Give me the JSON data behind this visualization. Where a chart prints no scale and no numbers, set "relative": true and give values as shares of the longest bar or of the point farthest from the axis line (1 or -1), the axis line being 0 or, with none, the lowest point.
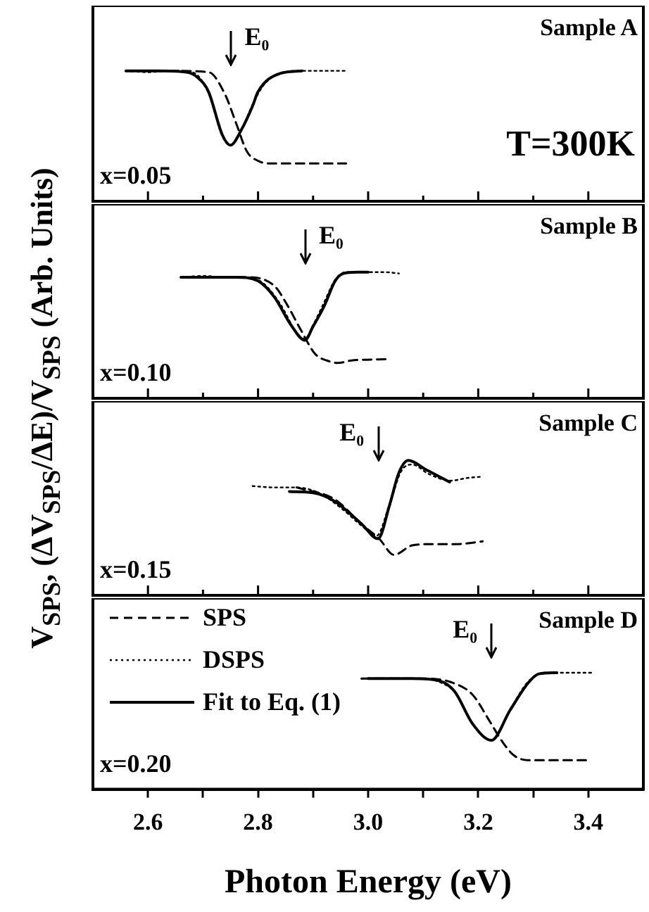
{
  "chart_data": [
    {
      "type": "line",
      "relative": true,
      "marker": "none",
      "ylabel": "V$_{SPS}$, (ΔV$_{SPS}$/ΔE)/V$_{SPS}$ (Arb. Units)",
      "xlim": [
        2.5,
        3.5
      ],
      "annotations": [
        "Sample A",
        "x=0.05",
        "T=300K",
        "E₀"
      ],
      "series": [
        {
          "color": "#000000",
          "line_style": "dashed",
          "x": [
            2.56,
            2.64,
            2.71,
            2.74,
            2.76,
            2.78,
            2.8,
            2.82,
            2.9,
            2.96
          ],
          "values": [
            1,
            1,
            0.99,
            0.82,
            0.6,
            0.38,
            0.31,
            0.29,
            0.29,
            0.29
          ]
        },
        {
          "color": "#000000",
          "line_style": "dotted",
          "x": [
            2.56,
            2.6,
            2.64,
            2.68,
            2.71,
            2.735,
            2.75,
            2.77,
            2.79,
            2.81,
            2.84,
            2.88,
            2.92,
            2.96
          ],
          "values": [
            1,
            0.99,
            1,
            0.99,
            0.83,
            0.5,
            0.43,
            0.55,
            0.74,
            0.89,
            0.98,
            1,
            1,
            1
          ]
        },
        {
          "color": "#000000",
          "line_style": "solid",
          "x": [
            2.56,
            2.62,
            2.67,
            2.69,
            2.71,
            2.735,
            2.75,
            2.77,
            2.79,
            2.8,
            2.84,
            2.88
          ],
          "values": [
            1,
            1,
            0.99,
            0.95,
            0.84,
            0.51,
            0.43,
            0.55,
            0.73,
            0.84,
            0.98,
            1
          ]
        }
      ]
    },
    {
      "type": "line",
      "relative": true,
      "marker": "none",
      "xlim": [
        2.5,
        3.5
      ],
      "annotations": [
        "Sample B",
        "x=0.10",
        "E₀"
      ],
      "series": [
        {
          "color": "#000000",
          "line_style": "dashed",
          "x": [
            2.66,
            2.78,
            2.83,
            2.853,
            2.878,
            2.904,
            2.925,
            2.945,
            2.97,
            3.04
          ],
          "values": [
            0.96,
            0.96,
            0.89,
            0.74,
            0.54,
            0.35,
            0.3,
            0.28,
            0.3,
            0.31
          ]
        },
        {
          "color": "#000000",
          "line_style": "dotted",
          "x": [
            2.66,
            2.7,
            2.74,
            2.78,
            2.81,
            2.84,
            2.87,
            2.885,
            2.9,
            2.92,
            2.94,
            2.96,
            3.0,
            3.03,
            3.056
          ],
          "values": [
            0.96,
            0.97,
            0.96,
            0.96,
            0.91,
            0.75,
            0.52,
            0.47,
            0.58,
            0.76,
            0.94,
            1,
            1,
            1,
            0.99
          ]
        },
        {
          "color": "#000000",
          "line_style": "solid",
          "x": [
            2.66,
            2.72,
            2.76,
            2.8,
            2.83,
            2.86,
            2.885,
            2.9,
            2.92,
            2.94,
            2.955,
            2.98,
            3.0
          ],
          "values": [
            0.96,
            0.96,
            0.96,
            0.93,
            0.8,
            0.58,
            0.46,
            0.57,
            0.73,
            0.93,
            0.99,
            1,
            1
          ]
        }
      ]
    },
    {
      "type": "line",
      "relative": true,
      "marker": "none",
      "xlim": [
        2.5,
        3.5
      ],
      "annotations": [
        "Sample C",
        "x=0.15",
        "E₀"
      ],
      "series": [
        {
          "color": "#000000",
          "line_style": "dashed",
          "x": [
            2.87,
            2.94,
            2.99,
            3.02,
            3.047,
            3.08,
            3.12,
            3.16,
            3.208
          ],
          "values": [
            0.8,
            0.71,
            0.52,
            0.42,
            0.3,
            0.37,
            0.38,
            0.38,
            0.4
          ]
        },
        {
          "color": "#000000",
          "line_style": "dotted",
          "x": [
            2.79,
            2.83,
            2.87,
            2.91,
            2.95,
            2.99,
            3.015,
            3.04,
            3.06,
            3.08,
            3.11,
            3.15,
            3.18,
            3.208
          ],
          "values": [
            0.81,
            0.8,
            0.8,
            0.76,
            0.65,
            0.51,
            0.44,
            0.69,
            0.92,
            0.97,
            0.9,
            0.85,
            0.87,
            0.88
          ]
        },
        {
          "color": "#000000",
          "line_style": "solid",
          "x": [
            2.857,
            2.9,
            2.938,
            2.988,
            3.018,
            3.039,
            3.056,
            3.073,
            3.106,
            3.148
          ],
          "values": [
            0.77,
            0.76,
            0.7,
            0.53,
            0.42,
            0.67,
            0.91,
            1,
            0.93,
            0.84
          ]
        }
      ]
    },
    {
      "type": "line",
      "relative": true,
      "marker": "none",
      "xlabel": "Photon Energy (eV)",
      "xlim": [
        2.5,
        3.5
      ],
      "legend": "top left",
      "xticks": [
        {
          "value": 2.6,
          "label": "2.6"
        },
        {
          "value": 2.7,
          "label": null
        },
        {
          "value": 2.8,
          "label": "2.8"
        },
        {
          "value": 2.9,
          "label": null
        },
        {
          "value": 3,
          "label": "3.0"
        },
        {
          "value": 3.1,
          "label": null
        },
        {
          "value": 3.2,
          "label": "3.2"
        },
        {
          "value": 3.3,
          "label": null
        },
        {
          "value": 3.4,
          "label": "3.4"
        }
      ],
      "annotations": [
        "Sample D",
        "x=0.20",
        "E₀"
      ],
      "series": [
        {
          "name": "SPS",
          "color": "#000000",
          "line_style": "dashed",
          "x": [
            2.988,
            3.1,
            3.15,
            3.19,
            3.22,
            3.245,
            3.265,
            3.29,
            3.4
          ],
          "values": [
            0.95,
            0.95,
            0.92,
            0.81,
            0.59,
            0.4,
            0.29,
            0.25,
            0.25
          ]
        },
        {
          "name": "DSPS",
          "color": "#000000",
          "line_style": "dotted",
          "x": [
            2.988,
            3.04,
            3.09,
            3.13,
            3.16,
            3.19,
            3.224,
            3.26,
            3.29,
            3.32,
            3.36,
            3.41
          ],
          "values": [
            0.95,
            0.95,
            0.95,
            0.92,
            0.82,
            0.56,
            0.42,
            0.7,
            0.92,
            1,
            1,
            1
          ]
        },
        {
          "name": "Fit to Eq. (1)",
          "color": "#000000",
          "line_style": "solid",
          "x": [
            3.0,
            3.08,
            3.13,
            3.157,
            3.19,
            3.224,
            3.258,
            3.292,
            3.31,
            3.343
          ],
          "values": [
            0.95,
            0.95,
            0.93,
            0.84,
            0.56,
            0.42,
            0.68,
            0.92,
            0.99,
            1
          ]
        }
      ]
    }
  ]
}
